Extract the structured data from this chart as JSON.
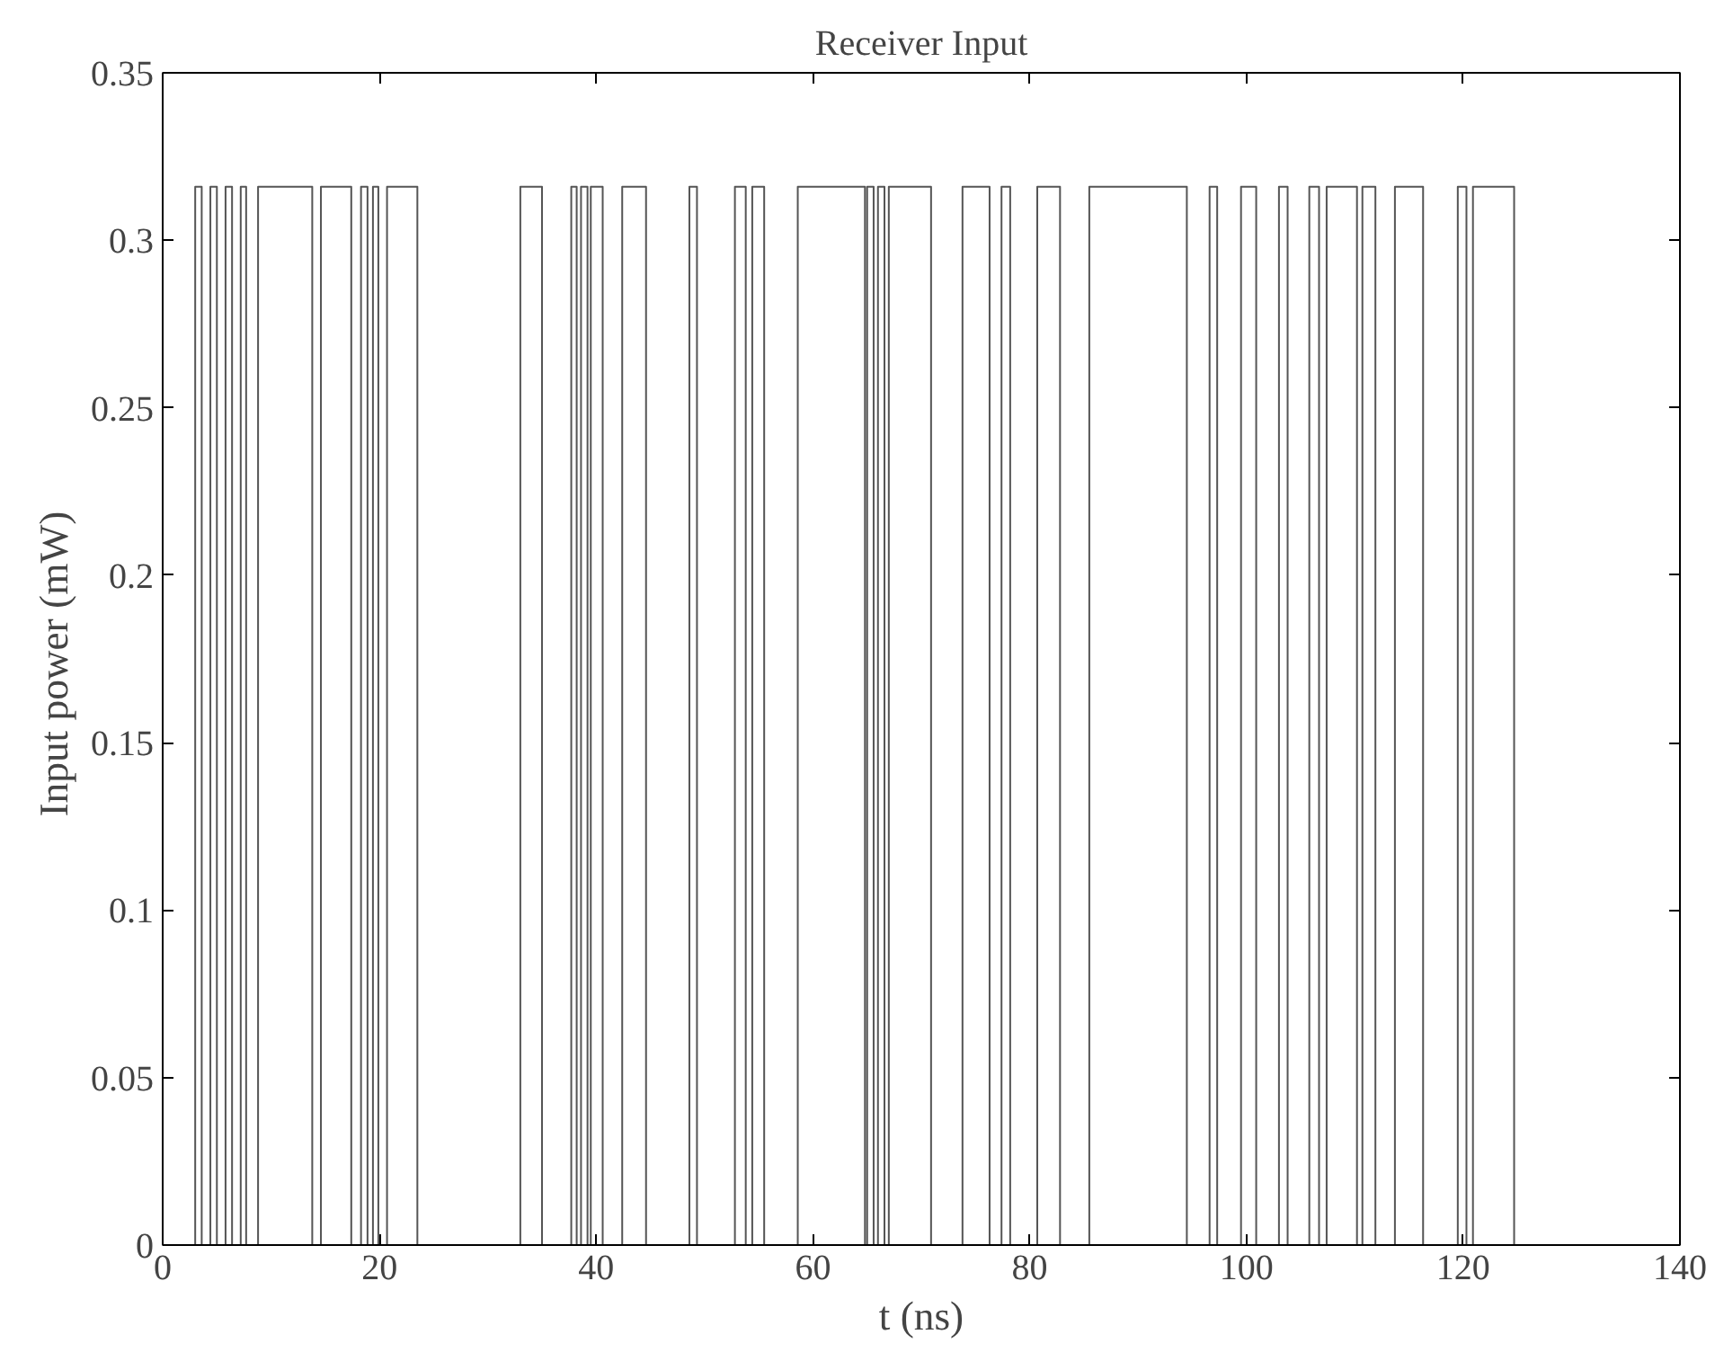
{
  "chart_data": {
    "type": "step",
    "title": "Receiver Input",
    "xlabel": "t (ns)",
    "ylabel": "Input  power (mW)",
    "xlim": [
      0,
      140
    ],
    "xticks": [
      0,
      20,
      40,
      60,
      80,
      100,
      120,
      140
    ],
    "ylim": [
      0,
      0.35
    ],
    "yticks": [
      0,
      0.05,
      0.1,
      0.15,
      0.2,
      0.25,
      0.3,
      0.35
    ],
    "grid": false,
    "line_style": "solid",
    "marker": "none",
    "series": [
      {
        "color": "#555555",
        "x": [
          0,
          3.0,
          3.6,
          4.4,
          5.0,
          5.8,
          6.4,
          7.2,
          7.7,
          8.8,
          13.8,
          14.6,
          17.4,
          18.3,
          18.9,
          19.4,
          19.9,
          20.7,
          23.5,
          33.0,
          35.0,
          37.7,
          38.2,
          38.6,
          39.2,
          39.5,
          40.6,
          42.4,
          44.6,
          48.6,
          49.3,
          52.8,
          53.8,
          54.4,
          55.5,
          58.6,
          64.8,
          65.0,
          65.6,
          66.0,
          66.6,
          67.0,
          70.9,
          73.8,
          76.3,
          77.4,
          78.2,
          80.7,
          82.8,
          85.5,
          94.5,
          96.6,
          97.3,
          99.5,
          100.9,
          103.0,
          103.8,
          105.8,
          106.7,
          107.4,
          110.2,
          110.7,
          111.9,
          113.7,
          116.3,
          119.5,
          120.3,
          120.9,
          124.7
        ],
        "values": [
          0,
          0.316,
          0,
          0.316,
          0,
          0.316,
          0,
          0.316,
          0,
          0.316,
          0,
          0.316,
          0,
          0.316,
          0,
          0.316,
          0,
          0.316,
          0,
          0.316,
          0,
          0.316,
          0,
          0.316,
          0,
          0.316,
          0,
          0.316,
          0,
          0.316,
          0,
          0.316,
          0,
          0.316,
          0,
          0.316,
          0,
          0.316,
          0,
          0.316,
          0,
          0.316,
          0,
          0.316,
          0,
          0.316,
          0,
          0.316,
          0,
          0.316,
          0,
          0.316,
          0,
          0.316,
          0,
          0.316,
          0,
          0.316,
          0,
          0.316,
          0,
          0.316,
          0,
          0.316,
          0,
          0.316,
          0,
          0.316,
          0
        ]
      }
    ]
  }
}
